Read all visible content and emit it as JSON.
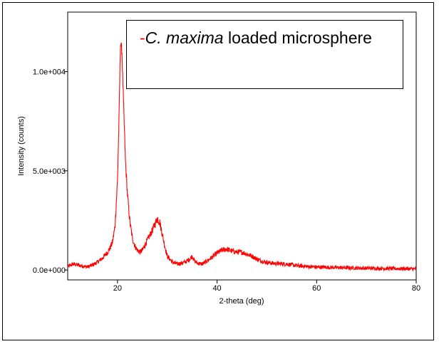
{
  "chart_data": {
    "type": "line",
    "title": "",
    "xlabel": "2-theta (deg)",
    "ylabel": "Intensity (counts)",
    "xlim": [
      10,
      80
    ],
    "ylim": [
      -500,
      13000
    ],
    "x_ticks": [
      20,
      40,
      60,
      80
    ],
    "x_tick_labels": [
      "20",
      "40",
      "60",
      "80"
    ],
    "y_ticks": [
      0,
      5000,
      10000
    ],
    "y_tick_labels": [
      "0.0e+000",
      "5.0e+003",
      "1.0e+004"
    ],
    "grid": false,
    "legend": {
      "placement": "top-right",
      "marker": "-",
      "species": "C. maxima",
      "rest": " loaded microsphere"
    },
    "series": [
      {
        "color": "#ff0000",
        "x": [
          10,
          11,
          12,
          13,
          14,
          15,
          16,
          17,
          18,
          18.5,
          19,
          19.5,
          20,
          20.3,
          20.6,
          20.9,
          21.2,
          21.6,
          22,
          22.5,
          23,
          23.5,
          24,
          24.5,
          25,
          26,
          27,
          27.5,
          28,
          28.5,
          29,
          29.5,
          30,
          31,
          32,
          33,
          34,
          34.5,
          35,
          35.5,
          36,
          37,
          38,
          39,
          40,
          41,
          42,
          43,
          44,
          45,
          46,
          47,
          48,
          49,
          50,
          52,
          54,
          56,
          58,
          60,
          65,
          70,
          75,
          80
        ],
        "y": [
          150,
          300,
          250,
          200,
          150,
          250,
          400,
          600,
          900,
          1100,
          1400,
          2200,
          4500,
          7500,
          11500,
          11000,
          8500,
          5500,
          3800,
          2400,
          1600,
          1200,
          1000,
          900,
          1000,
          1500,
          2000,
          2300,
          2600,
          2400,
          1800,
          1200,
          700,
          400,
          300,
          350,
          450,
          550,
          700,
          450,
          350,
          300,
          450,
          650,
          850,
          1000,
          1050,
          950,
          900,
          900,
          800,
          700,
          550,
          450,
          380,
          320,
          300,
          220,
          180,
          150,
          120,
          90,
          70,
          60
        ]
      }
    ]
  }
}
